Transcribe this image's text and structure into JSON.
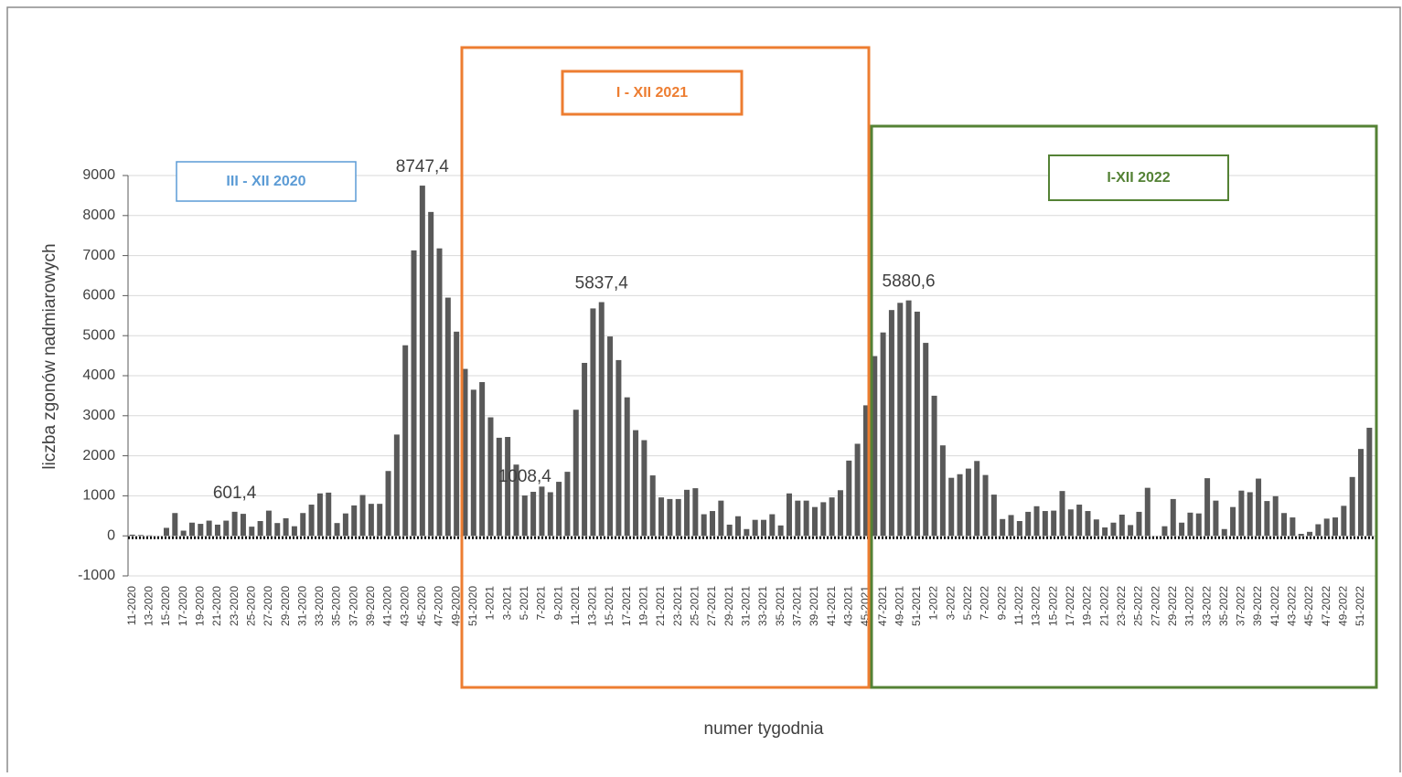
{
  "chart_data": {
    "type": "bar",
    "y_label": "liczba zgonów nadmiarowych",
    "x_label": "numer tygodnia",
    "categories": [
      "11-2020",
      null,
      "13-2020",
      null,
      "15-2020",
      null,
      "17-2020",
      null,
      "19-2020",
      null,
      "21-2020",
      null,
      "23-2020",
      null,
      "25-2020",
      null,
      "27-2020",
      null,
      "29-2020",
      null,
      "31-2020",
      null,
      "33-2020",
      null,
      "35-2020",
      null,
      "37-2020",
      null,
      "39-2020",
      null,
      "41-2020",
      null,
      "43-2020",
      null,
      "45-2020",
      null,
      "47-2020",
      null,
      "49-2020",
      null,
      "51-2020",
      null,
      "1-2021",
      null,
      "3-2021",
      null,
      "5-2021",
      null,
      "7-2021",
      null,
      "9-2021",
      null,
      "11-2021",
      null,
      "13-2021",
      null,
      "15-2021",
      null,
      "17-2021",
      null,
      "19-2021",
      null,
      "21-2021",
      null,
      "23-2021",
      null,
      "25-2021",
      null,
      "27-2021",
      null,
      "29-2021",
      null,
      "31-2021",
      null,
      "33-2021",
      null,
      "35-2021",
      null,
      "37-2021",
      null,
      "39-2021",
      null,
      "41-2021",
      null,
      "43-2021",
      null,
      "45-2021",
      null,
      "47-2021",
      null,
      "49-2021",
      null,
      "51-2021",
      null,
      "1-2022",
      null,
      "3-2022",
      null,
      "5-2022",
      null,
      "7-2022",
      null,
      "9-2022",
      null,
      "11-2022",
      null,
      "13-2022",
      null,
      "15-2022",
      null,
      "17-2022",
      null,
      "19-2022",
      null,
      "21-2022",
      null,
      "23-2022",
      null,
      "25-2022",
      null,
      "27-2022",
      null,
      "29-2022",
      null,
      "31-2022",
      null,
      "33-2022",
      null,
      "35-2022",
      null,
      "37-2022",
      null,
      "39-2022",
      null,
      "41-2022",
      null,
      "43-2022",
      null,
      "45-2022",
      null,
      "47-2022",
      null,
      "49-2022",
      null,
      "51-2022",
      null
    ],
    "values": [
      30,
      20,
      10,
      0,
      200,
      570,
      130,
      330,
      300,
      380,
      280,
      380,
      601.4,
      550,
      230,
      370,
      630,
      320,
      440,
      240,
      570,
      780,
      1060,
      1080,
      320,
      560,
      760,
      1020,
      800,
      800,
      1620,
      2530,
      4760,
      7130,
      8747.4,
      8090,
      7180,
      5950,
      5100,
      4170,
      3650,
      3840,
      2960,
      2450,
      2470,
      1780,
      1008.4,
      1100,
      1230,
      1090,
      1350,
      1600,
      3150,
      4320,
      5680,
      5837.4,
      4980,
      4390,
      3460,
      2640,
      2390,
      1510,
      960,
      920,
      920,
      1150,
      1190,
      540,
      620,
      880,
      280,
      490,
      170,
      400,
      400,
      540,
      260,
      1060,
      880,
      880,
      720,
      840,
      960,
      1140,
      1880,
      2300,
      3260,
      4490,
      5080,
      5640,
      5820,
      5880.6,
      5600,
      4820,
      3500,
      2260,
      1450,
      1540,
      1680,
      1870,
      1520,
      1030,
      420,
      520,
      370,
      600,
      740,
      620,
      630,
      1120,
      660,
      780,
      620,
      410,
      210,
      330,
      530,
      270,
      600,
      1200,
      0,
      240,
      920,
      330,
      580,
      560,
      1440,
      880,
      170,
      720,
      1130,
      1090,
      1430,
      870,
      990,
      570,
      460,
      50,
      100,
      290,
      430,
      460,
      750,
      1470,
      2170,
      2700
    ],
    "value_labels": [
      null,
      null,
      null,
      null,
      null,
      null,
      null,
      null,
      null,
      null,
      null,
      null,
      "601,4",
      null,
      null,
      null,
      null,
      null,
      null,
      null,
      null,
      null,
      null,
      null,
      null,
      null,
      null,
      null,
      null,
      null,
      null,
      null,
      null,
      null,
      "8747,4",
      null,
      null,
      null,
      null,
      null,
      null,
      null,
      null,
      null,
      null,
      null,
      "1008,4",
      null,
      null,
      null,
      null,
      null,
      null,
      null,
      null,
      "5837,4",
      null,
      null,
      null,
      null,
      null,
      null,
      null,
      null,
      null,
      null,
      null,
      null,
      null,
      null,
      null,
      null,
      null,
      null,
      null,
      null,
      null,
      null,
      null,
      null,
      null,
      null,
      null,
      null,
      null,
      null,
      null,
      null,
      null,
      null,
      null,
      "5880,6",
      null,
      null,
      null,
      null,
      null,
      null,
      null,
      null,
      null,
      null,
      null,
      null,
      null,
      null,
      null,
      null,
      null,
      null,
      null,
      null,
      null,
      null,
      null,
      null,
      null,
      null,
      null,
      null,
      null,
      null,
      null,
      null,
      null,
      null,
      null,
      null,
      null,
      null,
      null,
      null,
      null,
      null,
      null,
      null,
      null,
      null,
      null,
      null,
      null,
      null,
      null,
      null,
      null,
      null
    ],
    "color": "#595959",
    "ylim": [
      -1000,
      9000
    ],
    "yticks": [
      -1000,
      0,
      1000,
      2000,
      3000,
      4000,
      5000,
      6000,
      7000,
      8000,
      9000
    ],
    "grid": true,
    "annotations": [
      {
        "text": "III - XII 2020",
        "color": "#5b9bd5"
      },
      {
        "text": "I - XII 2021",
        "color": "#ed7d31"
      },
      {
        "text": "I-XII 2022",
        "color": "#548235"
      }
    ]
  }
}
